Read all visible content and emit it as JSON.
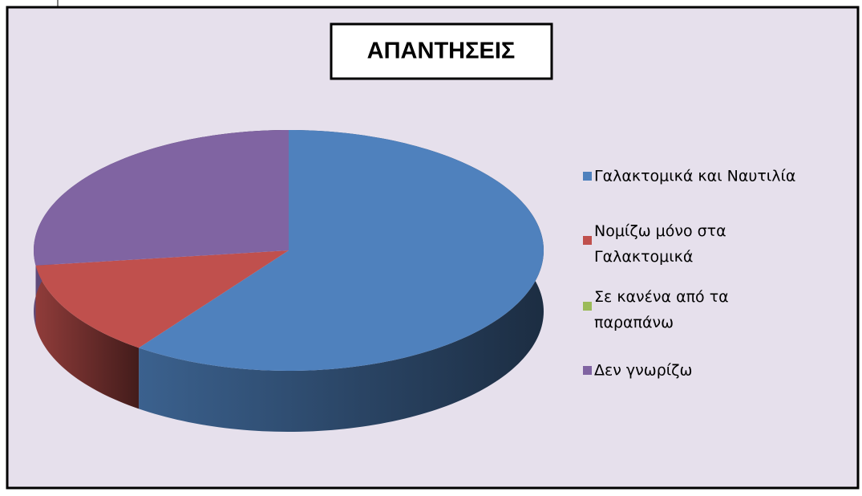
{
  "chart_data": {
    "type": "pie3d",
    "title": "ΑΠΑΝΤΗΣΕΙΣ",
    "categories": [
      "Γαλακτομικά και Ναυτιλία",
      "Νομίζω μόνο στα Γαλακτομικά",
      "Σε κανένα από τα παραπάνω",
      "Δεν γνωρίζω"
    ],
    "values": [
      60,
      13,
      0,
      27
    ],
    "colors": [
      "#4f81bd",
      "#c0504d",
      "#9bbb59",
      "#8064a2"
    ],
    "legend": "right"
  }
}
